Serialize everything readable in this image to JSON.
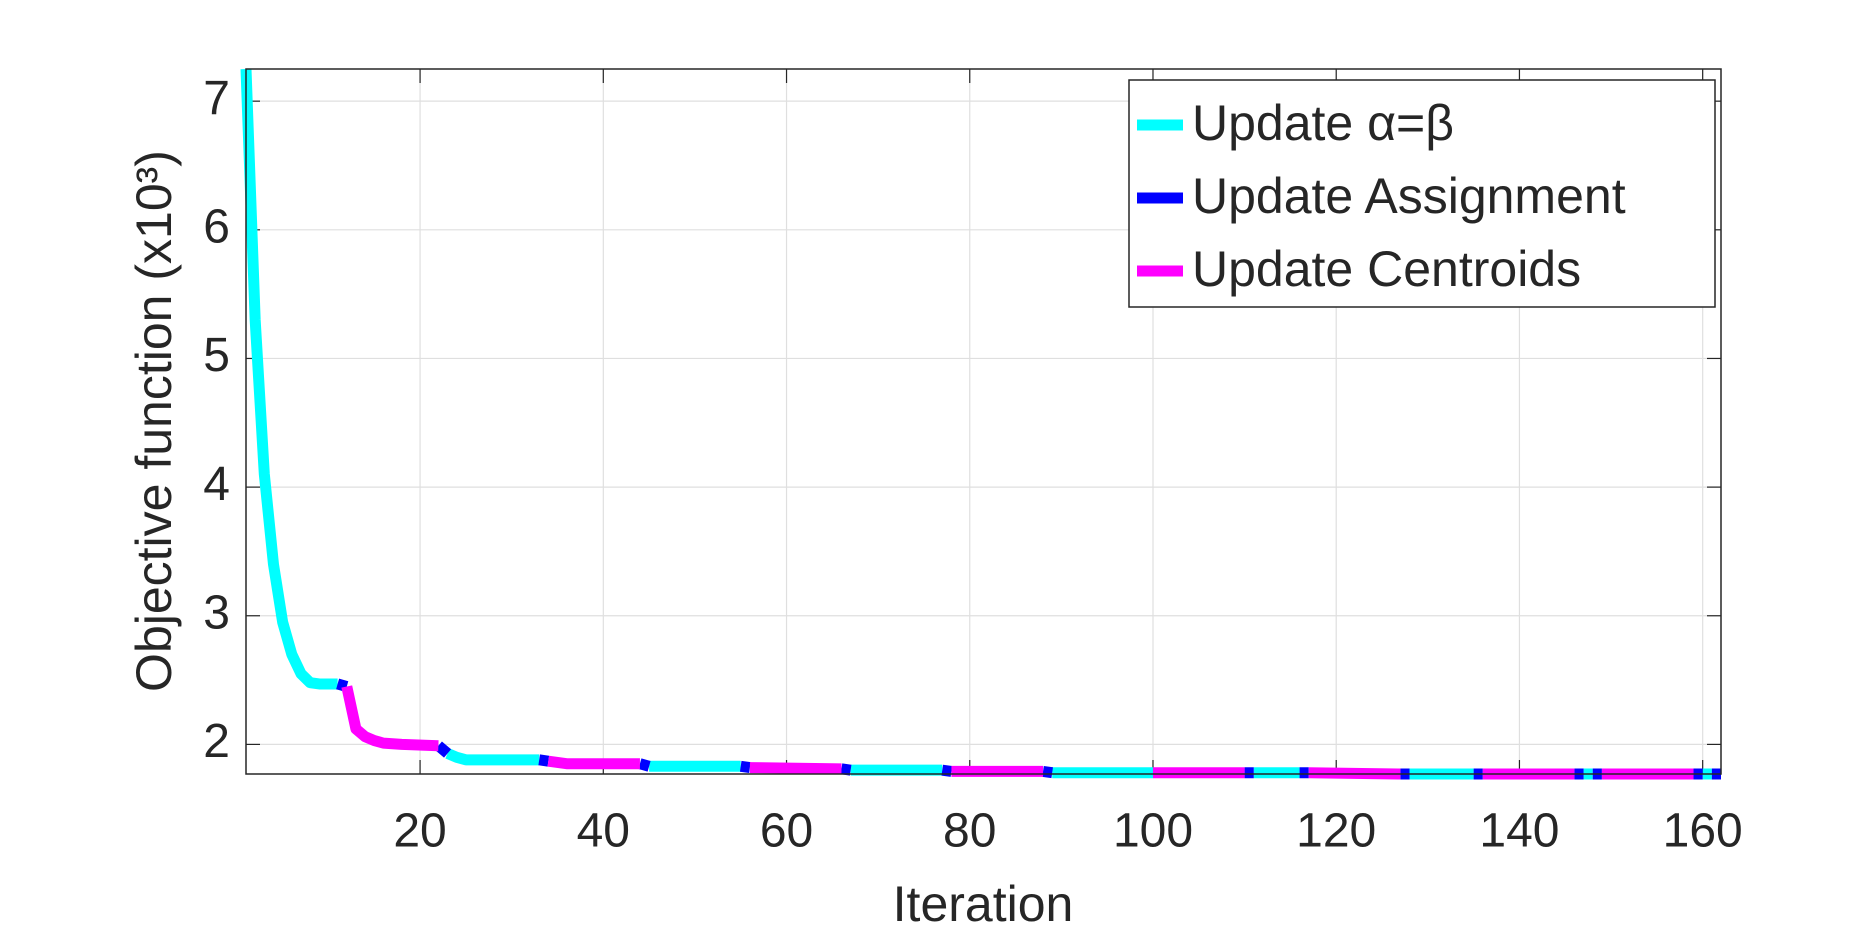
{
  "chart_data": {
    "type": "line",
    "xlabel": "Iteration",
    "ylabel": "Objective function (x10³)",
    "xlim": [
      1,
      162
    ],
    "ylim": [
      1.77,
      7.25
    ],
    "xticks": [
      20,
      40,
      60,
      80,
      100,
      120,
      140,
      160
    ],
    "yticks": [
      2,
      3,
      4,
      5,
      6,
      7
    ],
    "grid": true,
    "legend": "upper right",
    "series": [
      {
        "name": "Update α=β",
        "color": "#00ffff",
        "x": [
          1,
          2,
          3,
          4,
          5,
          6,
          7,
          8,
          9,
          11,
          null,
          23,
          24,
          25,
          33,
          null,
          45,
          55,
          null,
          67,
          77,
          null,
          89,
          100,
          null,
          111,
          116,
          null,
          128,
          135,
          null,
          147,
          148,
          null,
          160,
          161
        ],
        "values": [
          7.25,
          5.3,
          4.1,
          3.4,
          2.95,
          2.7,
          2.55,
          2.48,
          2.47,
          2.47,
          null,
          1.93,
          1.9,
          1.88,
          1.88,
          null,
          1.83,
          1.83,
          null,
          1.8,
          1.8,
          null,
          1.78,
          1.78,
          null,
          1.78,
          1.78,
          null,
          1.77,
          1.77,
          null,
          1.77,
          1.77,
          null,
          1.77,
          1.77
        ]
      },
      {
        "name": "Update Assignment",
        "color": "#0000ff",
        "x": [
          11,
          12,
          null,
          22,
          23,
          null,
          33,
          34,
          null,
          44,
          45,
          null,
          55,
          56,
          null,
          66,
          67,
          null,
          77,
          78,
          null,
          88,
          89,
          null,
          110,
          111,
          null,
          116,
          117,
          null,
          127,
          128,
          null,
          135,
          136,
          null,
          146,
          147,
          null,
          148,
          149,
          null,
          159,
          160,
          null,
          161,
          162
        ],
        "values": [
          2.47,
          2.45,
          null,
          1.99,
          1.93,
          null,
          1.88,
          1.87,
          null,
          1.85,
          1.83,
          null,
          1.83,
          1.82,
          null,
          1.81,
          1.8,
          null,
          1.8,
          1.79,
          null,
          1.79,
          1.78,
          null,
          1.78,
          1.78,
          null,
          1.78,
          1.78,
          null,
          1.77,
          1.77,
          null,
          1.77,
          1.77,
          null,
          1.77,
          1.77,
          null,
          1.77,
          1.77,
          null,
          1.77,
          1.77,
          null,
          1.77,
          1.77
        ]
      },
      {
        "name": "Update Centroids",
        "color": "#ff00ff",
        "x": [
          12,
          13,
          14,
          15,
          16,
          18,
          22,
          null,
          34,
          36,
          44,
          null,
          56,
          66,
          null,
          78,
          88,
          null,
          100,
          110,
          null,
          117,
          127,
          null,
          136,
          146,
          null,
          149,
          159
        ],
        "values": [
          2.45,
          2.12,
          2.06,
          2.03,
          2.01,
          2.0,
          1.99,
          null,
          1.87,
          1.85,
          1.85,
          null,
          1.82,
          1.81,
          null,
          1.79,
          1.79,
          null,
          1.78,
          1.78,
          null,
          1.78,
          1.77,
          null,
          1.77,
          1.77,
          null,
          1.77,
          1.77
        ]
      }
    ]
  }
}
